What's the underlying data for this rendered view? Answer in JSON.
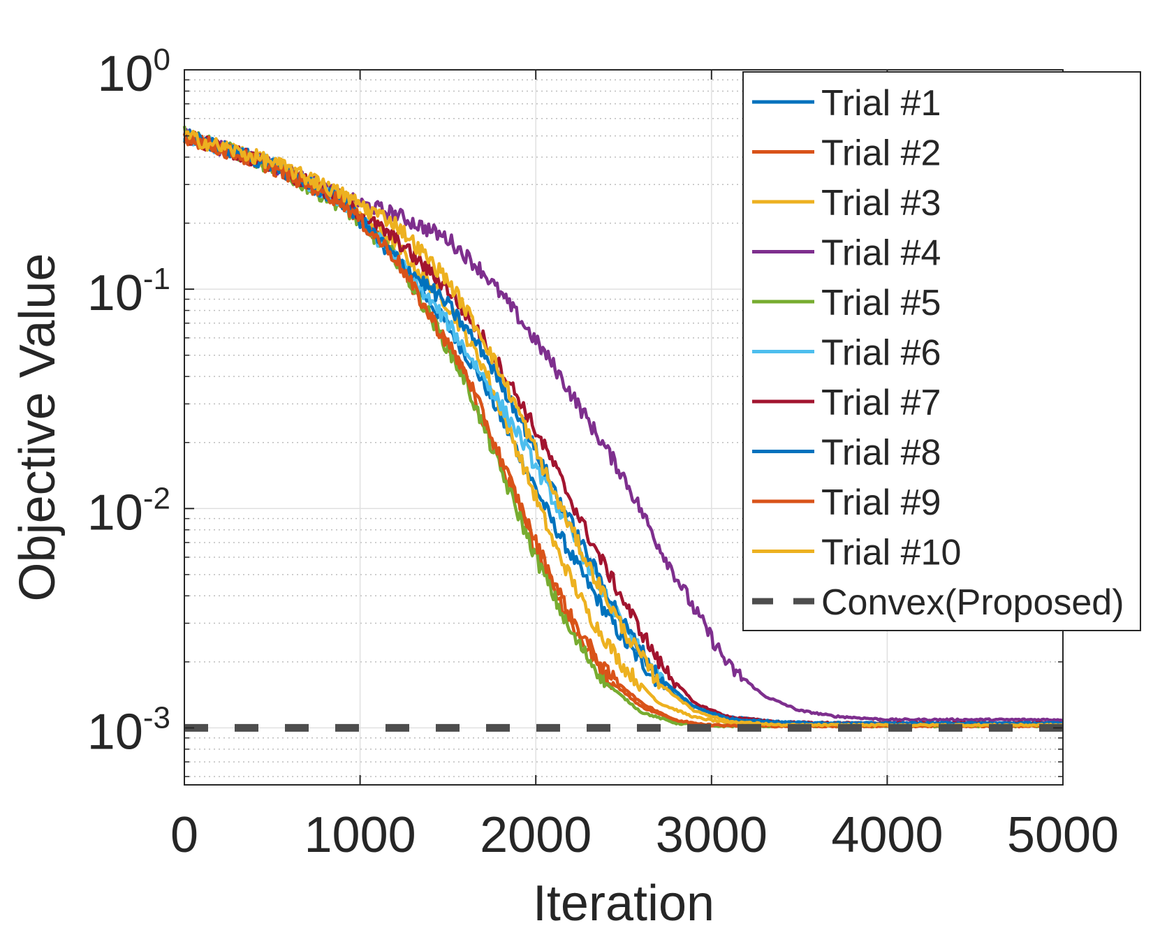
{
  "chart_data": {
    "type": "line",
    "title": "",
    "xlabel": "Iteration",
    "ylabel": "Objective Value",
    "xlim": [
      0,
      5000
    ],
    "ylim": [
      0.00055,
      1
    ],
    "yscale": "log",
    "grid": true,
    "legend_position": "top-right",
    "x_ticks": [
      {
        "value": 0,
        "label": "0"
      },
      {
        "value": 1000,
        "label": "1000"
      },
      {
        "value": 2000,
        "label": "2000"
      },
      {
        "value": 3000,
        "label": "3000"
      },
      {
        "value": 4000,
        "label": "4000"
      },
      {
        "value": 5000,
        "label": "5000"
      }
    ],
    "y_ticks": [
      {
        "value": 1,
        "base": "10",
        "exponent": "0"
      },
      {
        "value": 0.1,
        "base": "10",
        "exponent": "-1"
      },
      {
        "value": 0.01,
        "base": "10",
        "exponent": "-2"
      },
      {
        "value": 0.001,
        "base": "10",
        "exponent": "-3"
      }
    ],
    "series": [
      {
        "name": "Trial #1",
        "color": "#0072BD",
        "style": "solid",
        "x": [
          0,
          500,
          900,
          1200,
          1500,
          1700,
          1900,
          2100,
          2300,
          2500,
          2700,
          2900,
          3100,
          3400,
          3800,
          4200,
          5000
        ],
        "y": [
          0.5,
          0.37,
          0.25,
          0.14,
          0.068,
          0.038,
          0.018,
          0.0085,
          0.0045,
          0.0025,
          0.0016,
          0.00125,
          0.00112,
          0.00106,
          0.00105,
          0.00105,
          0.00105
        ]
      },
      {
        "name": "Trial #2",
        "color": "#D95319",
        "style": "solid",
        "x": [
          0,
          500,
          900,
          1200,
          1400,
          1600,
          1800,
          2000,
          2200,
          2400,
          2600,
          2800,
          3000,
          3300,
          3700,
          5000
        ],
        "y": [
          0.5,
          0.36,
          0.25,
          0.14,
          0.075,
          0.04,
          0.016,
          0.0065,
          0.003,
          0.0017,
          0.00125,
          0.00107,
          0.00103,
          0.00102,
          0.00102,
          0.00102
        ]
      },
      {
        "name": "Trial #3",
        "color": "#EDB120",
        "style": "solid",
        "x": [
          0,
          500,
          900,
          1200,
          1500,
          1700,
          1900,
          2100,
          2300,
          2500,
          2700,
          2900,
          3100,
          3400,
          3800,
          5000
        ],
        "y": [
          0.5,
          0.38,
          0.27,
          0.16,
          0.085,
          0.045,
          0.018,
          0.007,
          0.0033,
          0.0019,
          0.0013,
          0.00112,
          0.00105,
          0.00103,
          0.00103,
          0.00103
        ]
      },
      {
        "name": "Trial #4",
        "color": "#7E2F8E",
        "style": "solid",
        "x": [
          0,
          500,
          900,
          1200,
          1500,
          1700,
          1900,
          2100,
          2300,
          2500,
          2700,
          2900,
          3100,
          3300,
          3500,
          3700,
          4000,
          4500,
          5000
        ],
        "y": [
          0.5,
          0.37,
          0.26,
          0.22,
          0.17,
          0.12,
          0.075,
          0.045,
          0.025,
          0.014,
          0.0068,
          0.0035,
          0.0019,
          0.0014,
          0.0012,
          0.00113,
          0.00109,
          0.00109,
          0.00109
        ]
      },
      {
        "name": "Trial #5",
        "color": "#77AC30",
        "style": "solid",
        "x": [
          0,
          500,
          900,
          1200,
          1400,
          1600,
          1800,
          2000,
          2200,
          2400,
          2600,
          2800,
          3000,
          3300,
          5000
        ],
        "y": [
          0.52,
          0.36,
          0.24,
          0.14,
          0.075,
          0.038,
          0.015,
          0.006,
          0.0027,
          0.0016,
          0.00118,
          0.00105,
          0.00102,
          0.00102,
          0.00102
        ]
      },
      {
        "name": "Trial #6",
        "color": "#4DBEEE",
        "style": "solid",
        "x": [
          0,
          500,
          900,
          1200,
          1500,
          1700,
          1900,
          2100,
          2300,
          2500,
          2700,
          2900,
          3100,
          3400,
          5000
        ],
        "y": [
          0.5,
          0.37,
          0.25,
          0.14,
          0.07,
          0.04,
          0.022,
          0.011,
          0.0055,
          0.0029,
          0.0017,
          0.00125,
          0.00108,
          0.00104,
          0.00104
        ]
      },
      {
        "name": "Trial #7",
        "color": "#A2142F",
        "style": "solid",
        "x": [
          0,
          500,
          900,
          1200,
          1500,
          1700,
          1900,
          2100,
          2300,
          2500,
          2700,
          2900,
          3100,
          3400,
          3800,
          5000
        ],
        "y": [
          0.5,
          0.37,
          0.25,
          0.17,
          0.1,
          0.06,
          0.032,
          0.016,
          0.0075,
          0.0038,
          0.002,
          0.0013,
          0.00112,
          0.00106,
          0.00105,
          0.00105
        ]
      },
      {
        "name": "Trial #8",
        "color": "#0072BD",
        "style": "solid",
        "x": [
          0,
          500,
          900,
          1200,
          1500,
          1700,
          1900,
          2100,
          2300,
          2500,
          2700,
          2900,
          3100,
          3400,
          3800,
          5000
        ],
        "y": [
          0.5,
          0.37,
          0.25,
          0.14,
          0.085,
          0.052,
          0.027,
          0.0125,
          0.006,
          0.003,
          0.0017,
          0.00125,
          0.0011,
          0.00106,
          0.00105,
          0.00105
        ]
      },
      {
        "name": "Trial #9",
        "color": "#D95319",
        "style": "solid",
        "x": [
          0,
          500,
          900,
          1200,
          1400,
          1600,
          1800,
          2000,
          2200,
          2400,
          2600,
          2800,
          3000,
          3300,
          5000
        ],
        "y": [
          0.5,
          0.36,
          0.25,
          0.14,
          0.075,
          0.042,
          0.017,
          0.007,
          0.0032,
          0.0018,
          0.0013,
          0.00108,
          0.00103,
          0.00102,
          0.00102
        ]
      },
      {
        "name": "Trial #10",
        "color": "#EDB120",
        "style": "solid",
        "x": [
          0,
          500,
          900,
          1200,
          1500,
          1700,
          1900,
          2100,
          2300,
          2500,
          2700,
          2900,
          3100,
          3400,
          5000
        ],
        "y": [
          0.5,
          0.38,
          0.27,
          0.2,
          0.11,
          0.06,
          0.028,
          0.012,
          0.0055,
          0.0028,
          0.0016,
          0.0012,
          0.00107,
          0.00103,
          0.00103
        ]
      },
      {
        "name": "Convex(Proposed)",
        "color": "#4d4d4d",
        "style": "dashed",
        "x": [
          0,
          5000
        ],
        "y": [
          0.001,
          0.001
        ]
      }
    ]
  }
}
